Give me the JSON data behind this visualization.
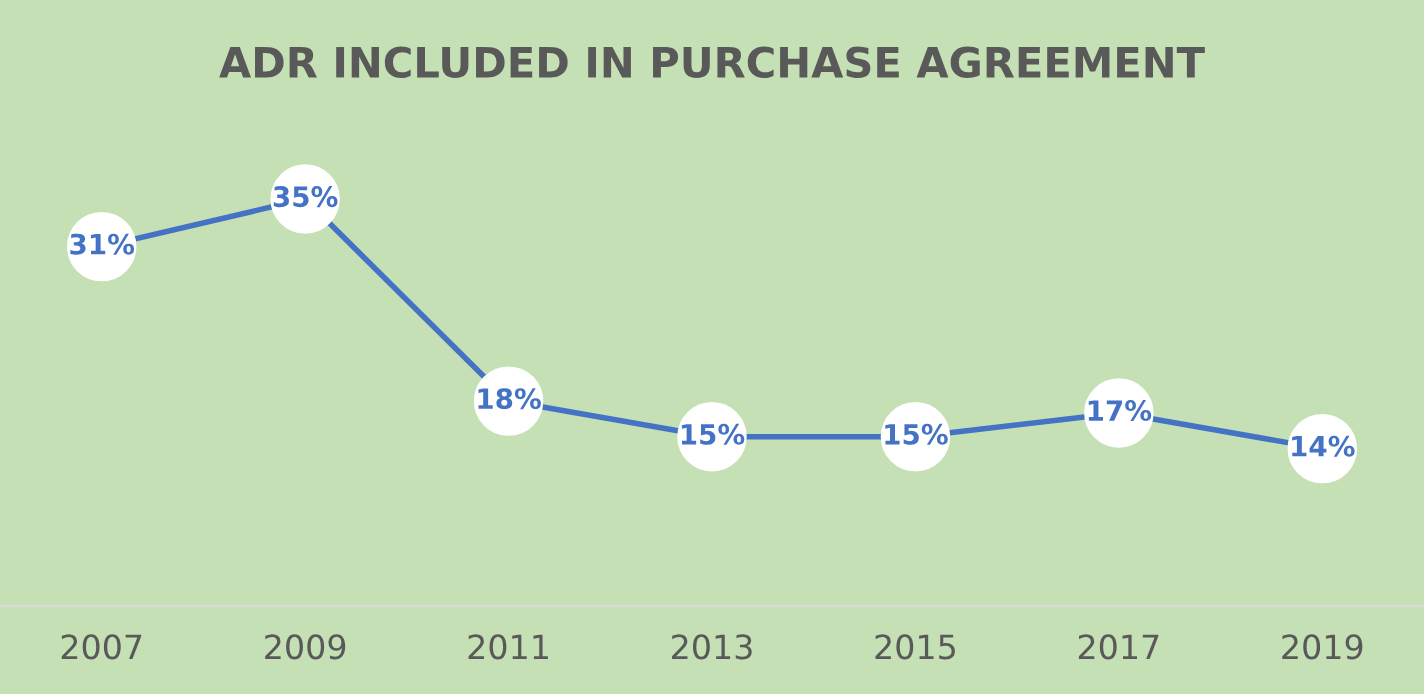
{
  "chart_data": {
    "type": "line",
    "title": "ADR INCLUDED IN PURCHASE AGREEMENT",
    "categories": [
      "2007",
      "2009",
      "2011",
      "2013",
      "2015",
      "2017",
      "2019"
    ],
    "series": [
      {
        "color": "#4472c4",
        "values": [
          31,
          35,
          18,
          15,
          15,
          17,
          14
        ],
        "value_labels": [
          "31%",
          "35%",
          "18%",
          "15%",
          "15%",
          "17%",
          "14%"
        ]
      }
    ],
    "tick_labels": "x",
    "grid": false,
    "marker": "circle",
    "line_style": "solid"
  }
}
